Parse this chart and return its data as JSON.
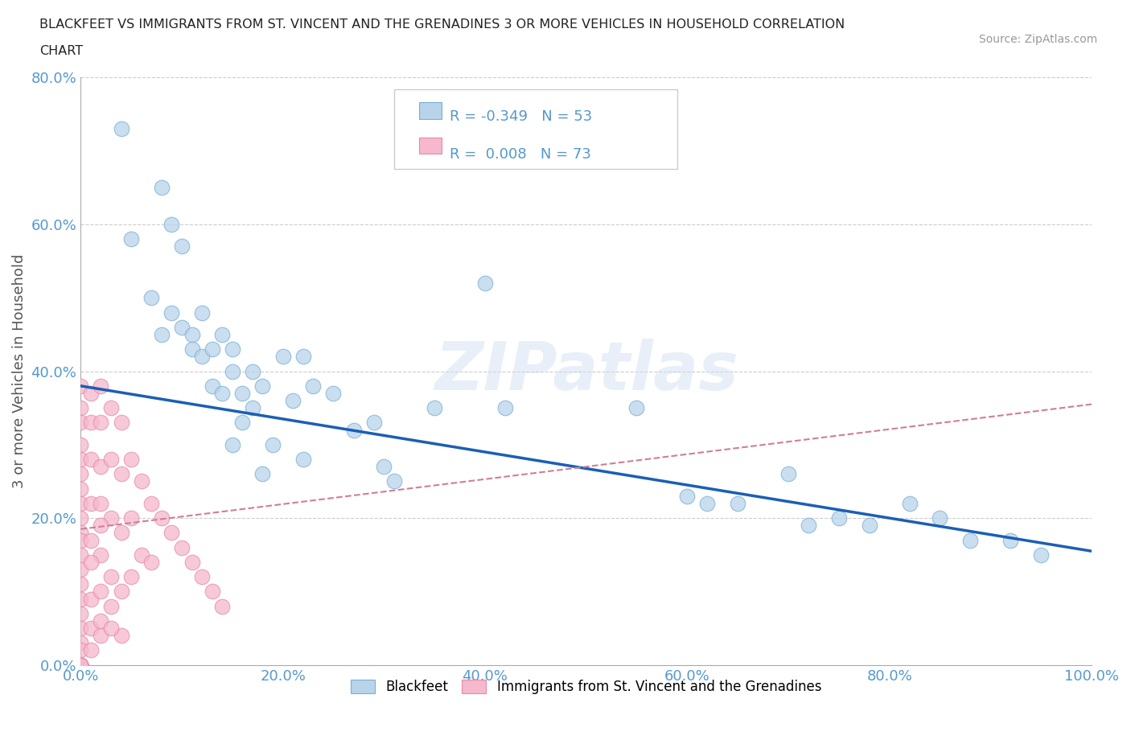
{
  "title_line1": "BLACKFEET VS IMMIGRANTS FROM ST. VINCENT AND THE GRENADINES 3 OR MORE VEHICLES IN HOUSEHOLD CORRELATION",
  "title_line2": "CHART",
  "source": "Source: ZipAtlas.com",
  "ylabel": "3 or more Vehicles in Household",
  "xlim": [
    0.0,
    1.0
  ],
  "ylim": [
    0.0,
    0.8
  ],
  "xticks": [
    0.0,
    0.2,
    0.4,
    0.6,
    0.8,
    1.0
  ],
  "yticks": [
    0.0,
    0.2,
    0.4,
    0.6,
    0.8
  ],
  "xticklabels": [
    "0.0%",
    "20.0%",
    "40.0%",
    "60.0%",
    "80.0%",
    "100.0%"
  ],
  "yticklabels": [
    "0.0%",
    "20.0%",
    "40.0%",
    "60.0%",
    "80.0%"
  ],
  "watermark": "ZIPatlas",
  "blackfeet_R": -0.349,
  "blackfeet_N": 53,
  "immigrant_R": 0.008,
  "immigrant_N": 73,
  "blackfeet_color": "#b8d4ea",
  "immigrant_color": "#f5b8cc",
  "blackfeet_edge": "#7aaed4",
  "immigrant_edge": "#e888aa",
  "trend_blue": "#1a5fb4",
  "trend_pink": "#d08090",
  "bf_trend_x0": 0.0,
  "bf_trend_y0": 0.38,
  "bf_trend_x1": 1.0,
  "bf_trend_y1": 0.155,
  "imm_trend_x0": 0.0,
  "imm_trend_y0": 0.185,
  "imm_trend_x1": 1.0,
  "imm_trend_y1": 0.355,
  "blackfeet_x": [
    0.04,
    0.08,
    0.09,
    0.1,
    0.1,
    0.11,
    0.11,
    0.12,
    0.12,
    0.13,
    0.13,
    0.14,
    0.14,
    0.15,
    0.15,
    0.16,
    0.16,
    0.17,
    0.17,
    0.18,
    0.19,
    0.2,
    0.21,
    0.22,
    0.23,
    0.25,
    0.27,
    0.29,
    0.31,
    0.35,
    0.4,
    0.42,
    0.55,
    0.6,
    0.62,
    0.65,
    0.7,
    0.72,
    0.75,
    0.78,
    0.82,
    0.85,
    0.88,
    0.92,
    0.95,
    0.05,
    0.07,
    0.08,
    0.09,
    0.15,
    0.18,
    0.22,
    0.3
  ],
  "blackfeet_y": [
    0.73,
    0.65,
    0.6,
    0.57,
    0.46,
    0.45,
    0.43,
    0.48,
    0.42,
    0.43,
    0.38,
    0.45,
    0.37,
    0.43,
    0.4,
    0.37,
    0.33,
    0.4,
    0.35,
    0.38,
    0.3,
    0.42,
    0.36,
    0.42,
    0.38,
    0.37,
    0.32,
    0.33,
    0.25,
    0.35,
    0.52,
    0.35,
    0.35,
    0.23,
    0.22,
    0.22,
    0.26,
    0.19,
    0.2,
    0.19,
    0.22,
    0.2,
    0.17,
    0.17,
    0.15,
    0.58,
    0.5,
    0.45,
    0.48,
    0.3,
    0.26,
    0.28,
    0.27
  ],
  "immigrant_x": [
    0.0,
    0.0,
    0.0,
    0.0,
    0.0,
    0.0,
    0.0,
    0.0,
    0.0,
    0.0,
    0.0,
    0.0,
    0.0,
    0.0,
    0.0,
    0.0,
    0.0,
    0.0,
    0.0,
    0.0,
    0.0,
    0.0,
    0.0,
    0.0,
    0.0,
    0.0,
    0.0,
    0.0,
    0.0,
    0.0,
    0.01,
    0.01,
    0.01,
    0.01,
    0.01,
    0.01,
    0.01,
    0.02,
    0.02,
    0.02,
    0.02,
    0.02,
    0.02,
    0.02,
    0.03,
    0.03,
    0.03,
    0.03,
    0.04,
    0.04,
    0.04,
    0.04,
    0.04,
    0.05,
    0.05,
    0.05,
    0.06,
    0.06,
    0.07,
    0.07,
    0.08,
    0.09,
    0.1,
    0.11,
    0.12,
    0.13,
    0.14,
    0.01,
    0.02,
    0.03,
    0.02,
    0.01,
    0.03
  ],
  "immigrant_y": [
    0.38,
    0.35,
    0.33,
    0.3,
    0.28,
    0.26,
    0.24,
    0.22,
    0.2,
    0.18,
    0.17,
    0.15,
    0.13,
    0.11,
    0.09,
    0.07,
    0.05,
    0.03,
    0.02,
    0.0,
    0.0,
    0.0,
    0.0,
    0.0,
    0.0,
    0.0,
    0.0,
    0.0,
    0.0,
    0.0,
    0.37,
    0.33,
    0.28,
    0.22,
    0.17,
    0.09,
    0.05,
    0.38,
    0.33,
    0.27,
    0.22,
    0.15,
    0.1,
    0.04,
    0.35,
    0.28,
    0.2,
    0.12,
    0.33,
    0.26,
    0.18,
    0.1,
    0.04,
    0.28,
    0.2,
    0.12,
    0.25,
    0.15,
    0.22,
    0.14,
    0.2,
    0.18,
    0.16,
    0.14,
    0.12,
    0.1,
    0.08,
    0.02,
    0.06,
    0.08,
    0.19,
    0.14,
    0.05
  ]
}
